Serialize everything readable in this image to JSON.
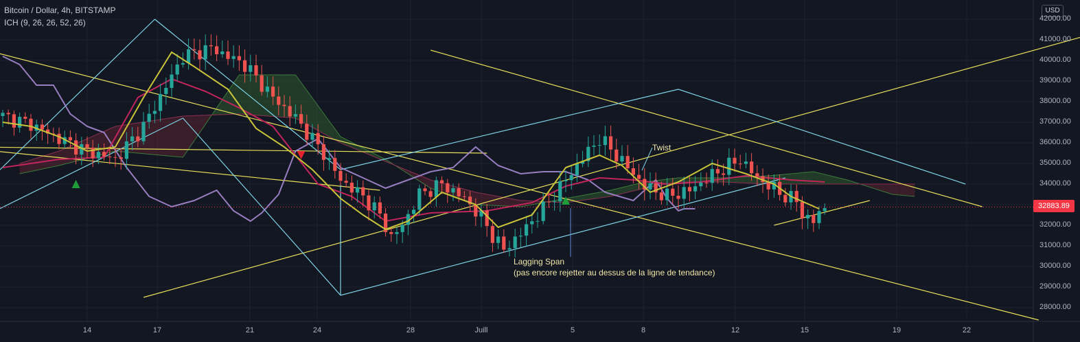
{
  "header": {
    "symbol_line": "Bitcoin / Dollar, 4h, BITSTAMP",
    "indicator_line": "ICH (9, 26, 26, 52, 26)"
  },
  "currency_badge": "USD",
  "colors": {
    "background": "#131722",
    "up": "#26a69a",
    "down": "#ef5350",
    "trendline": "#e8e05a",
    "channel": "#7fd3e6",
    "tenkan": "#c9c43a",
    "kijun": "#c2255c",
    "lagging": "#a58ad1",
    "cloud_bull": "#2e5a2e",
    "cloud_bear": "#5a2530",
    "price_tag": "#f23645"
  },
  "chart_data": {
    "type": "candlestick",
    "y_ticks": [
      "42000.00",
      "41000.00",
      "40000.00",
      "39000.00",
      "38000.00",
      "37000.00",
      "36000.00",
      "35000.00",
      "34000.00",
      "33000.00",
      "32000.00",
      "31000.00",
      "30000.00",
      "29000.00",
      "28000.00"
    ],
    "x_ticks": [
      "14",
      "17",
      "21",
      "24",
      "28",
      "Juill",
      "5",
      "8",
      "12",
      "15",
      "19",
      "22"
    ],
    "ylim": [
      27500,
      42300
    ],
    "last_price": "32883.89",
    "price_path": [
      [
        0,
        37300
      ],
      [
        5,
        36900
      ],
      [
        10,
        36200
      ],
      [
        15,
        35600
      ],
      [
        20,
        35200
      ],
      [
        25,
        36800
      ],
      [
        32,
        40200
      ],
      [
        37,
        40600
      ],
      [
        43,
        39800
      ],
      [
        48,
        38200
      ],
      [
        52,
        37200
      ],
      [
        57,
        35500
      ],
      [
        60,
        34200
      ],
      [
        64,
        33400
      ],
      [
        67,
        32500
      ],
      [
        69,
        31400
      ],
      [
        71,
        32000
      ],
      [
        74,
        33500
      ],
      [
        78,
        34000
      ],
      [
        82,
        33300
      ],
      [
        85,
        32400
      ],
      [
        87,
        31500
      ],
      [
        89,
        30800
      ],
      [
        92,
        31600
      ],
      [
        96,
        32800
      ],
      [
        100,
        34200
      ],
      [
        104,
        35600
      ],
      [
        106,
        36200
      ],
      [
        108,
        35700
      ],
      [
        111,
        34800
      ],
      [
        114,
        33900
      ],
      [
        118,
        33400
      ],
      [
        122,
        33700
      ],
      [
        127,
        34600
      ],
      [
        131,
        35200
      ],
      [
        134,
        34300
      ],
      [
        139,
        33400
      ],
      [
        141,
        33200
      ],
      [
        142,
        32500
      ],
      [
        144,
        32200
      ],
      [
        146,
        32900
      ]
    ],
    "lagging_path": [
      [
        0,
        40200
      ],
      [
        3,
        39800
      ],
      [
        6,
        38800
      ],
      [
        9,
        38800
      ],
      [
        12,
        37400
      ],
      [
        15,
        36800
      ],
      [
        18,
        36500
      ],
      [
        22,
        34800
      ],
      [
        26,
        33400
      ],
      [
        30,
        32900
      ],
      [
        34,
        33200
      ],
      [
        38,
        33700
      ],
      [
        41,
        32700
      ],
      [
        44,
        32200
      ],
      [
        46,
        32600
      ],
      [
        49,
        33500
      ],
      [
        52,
        35600
      ],
      [
        56,
        36200
      ],
      [
        60,
        34800
      ],
      [
        64,
        34300
      ],
      [
        68,
        33800
      ],
      [
        72,
        34200
      ],
      [
        76,
        34600
      ],
      [
        80,
        34800
      ],
      [
        84,
        35800
      ],
      [
        88,
        34900
      ],
      [
        92,
        34500
      ],
      [
        96,
        34600
      ],
      [
        100,
        34600
      ],
      [
        104,
        34200
      ],
      [
        107,
        33600
      ],
      [
        112,
        33200
      ],
      [
        116,
        34200
      ],
      [
        118,
        33300
      ],
      [
        120,
        32700
      ],
      [
        121,
        32800
      ],
      [
        123,
        32800
      ]
    ],
    "tenkan_path": [
      [
        0,
        37000
      ],
      [
        5,
        36800
      ],
      [
        10,
        36300
      ],
      [
        15,
        35600
      ],
      [
        20,
        35800
      ],
      [
        25,
        38200
      ],
      [
        30,
        40400
      ],
      [
        34,
        39700
      ],
      [
        40,
        38600
      ],
      [
        45,
        36700
      ],
      [
        50,
        35800
      ],
      [
        55,
        34700
      ],
      [
        60,
        33300
      ],
      [
        64,
        32500
      ],
      [
        68,
        31800
      ],
      [
        72,
        32200
      ],
      [
        78,
        33600
      ],
      [
        84,
        33000
      ],
      [
        88,
        31900
      ],
      [
        94,
        32500
      ],
      [
        100,
        34800
      ],
      [
        106,
        35400
      ],
      [
        110,
        34900
      ],
      [
        115,
        33600
      ],
      [
        120,
        34100
      ],
      [
        126,
        35000
      ],
      [
        132,
        34500
      ],
      [
        137,
        34000
      ],
      [
        140,
        33400
      ],
      [
        145,
        32800
      ]
    ],
    "kijun_path": [
      [
        0,
        34800
      ],
      [
        10,
        35200
      ],
      [
        18,
        35300
      ],
      [
        24,
        38200
      ],
      [
        30,
        39100
      ],
      [
        36,
        38500
      ],
      [
        42,
        37700
      ],
      [
        48,
        36800
      ],
      [
        56,
        34000
      ],
      [
        62,
        33400
      ],
      [
        68,
        32200
      ],
      [
        76,
        32600
      ],
      [
        86,
        32700
      ],
      [
        94,
        33100
      ],
      [
        100,
        33900
      ],
      [
        106,
        34300
      ],
      [
        112,
        34200
      ],
      [
        118,
        34000
      ],
      [
        124,
        34100
      ],
      [
        132,
        34400
      ],
      [
        140,
        34200
      ],
      [
        146,
        34100
      ]
    ],
    "cloud_a_path": [
      [
        3,
        34500
      ],
      [
        10,
        34900
      ],
      [
        20,
        35600
      ],
      [
        32,
        35300
      ],
      [
        42,
        39300
      ],
      [
        52,
        39300
      ],
      [
        60,
        36300
      ],
      [
        68,
        35200
      ],
      [
        76,
        33800
      ],
      [
        84,
        33000
      ],
      [
        92,
        32900
      ],
      [
        100,
        33300
      ],
      [
        108,
        33700
      ],
      [
        114,
        34100
      ],
      [
        120,
        34300
      ],
      [
        128,
        34300
      ],
      [
        136,
        34400
      ],
      [
        144,
        34600
      ],
      [
        150,
        34200
      ],
      [
        158,
        33500
      ],
      [
        162,
        33400
      ]
    ],
    "cloud_b_path": [
      [
        3,
        35000
      ],
      [
        10,
        35600
      ],
      [
        20,
        36800
      ],
      [
        32,
        37300
      ],
      [
        42,
        37400
      ],
      [
        52,
        37200
      ],
      [
        60,
        36000
      ],
      [
        68,
        35100
      ],
      [
        76,
        34200
      ],
      [
        84,
        33600
      ],
      [
        92,
        33200
      ],
      [
        100,
        33100
      ],
      [
        108,
        33400
      ],
      [
        114,
        33800
      ],
      [
        120,
        34100
      ],
      [
        128,
        34100
      ],
      [
        136,
        34000
      ],
      [
        144,
        34000
      ],
      [
        150,
        34000
      ],
      [
        158,
        34000
      ],
      [
        162,
        34000
      ]
    ],
    "trend_lines": [
      {
        "color": "trendline",
        "p1": [
          -5,
          35700
        ],
        "p2": [
          67,
          33700
        ]
      },
      {
        "color": "trendline",
        "p1": [
          -5,
          35800
        ],
        "p2": [
          86,
          35500
        ]
      },
      {
        "color": "trendline",
        "p1": [
          25,
          28500
        ],
        "p2": [
          203,
          42000
        ]
      },
      {
        "color": "trendline",
        "p1": [
          -3,
          40500
        ],
        "p2": [
          184,
          27400
        ]
      },
      {
        "color": "trendline",
        "p1": [
          76,
          40500
        ],
        "p2": [
          174,
          32900
        ]
      },
      {
        "color": "trendline",
        "p1": [
          137,
          32000
        ],
        "p2": [
          154,
          33200
        ]
      },
      {
        "color": "channel",
        "p1": [
          -5,
          33500
        ],
        "p2": [
          27,
          42000
        ]
      },
      {
        "color": "channel",
        "p1": [
          27,
          42000
        ],
        "p2": [
          60,
          34700
        ]
      },
      {
        "color": "channel",
        "p1": [
          -5,
          32200
        ],
        "p2": [
          32,
          37200
        ]
      },
      {
        "color": "channel",
        "p1": [
          32,
          37200
        ],
        "p2": [
          60,
          28600
        ]
      },
      {
        "color": "channel",
        "p1": [
          60,
          28600
        ],
        "p2": [
          139,
          34300
        ]
      },
      {
        "color": "channel",
        "p1": [
          60,
          34700
        ],
        "p2": [
          120,
          38600
        ]
      },
      {
        "color": "channel",
        "p1": [
          120,
          38600
        ],
        "p2": [
          171,
          34000
        ]
      },
      {
        "color": "channel",
        "p1": [
          60,
          28600
        ],
        "p2": [
          60,
          34000
        ]
      }
    ],
    "markers": [
      {
        "type": "up",
        "x": 13,
        "y": 34000
      },
      {
        "type": "down",
        "x": 53,
        "y": 35400
      },
      {
        "type": "up",
        "x": 100,
        "y": 33200
      }
    ],
    "annotations": [
      {
        "text": "Twist",
        "x": 138,
        "y": 36000
      },
      {
        "text": "Lagging Span",
        "x": 108,
        "y": 30200
      },
      {
        "text": "(pas encore rejetter au dessus de la ligne de tendance)",
        "x": 108,
        "y": 29700
      }
    ]
  }
}
